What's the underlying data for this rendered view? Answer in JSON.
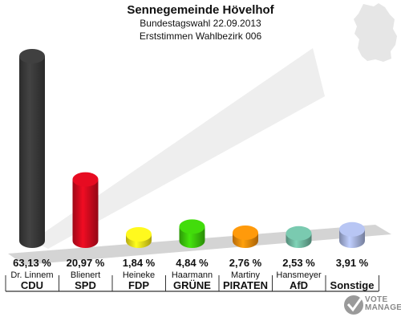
{
  "header": {
    "title": "Sennegemeinde Hövelhof",
    "subtitle": "Bundestagswahl 22.09.2013",
    "subtitle2": "Erststimmen Wahlbezirk 006"
  },
  "chart_data": {
    "type": "bar",
    "title": "Sennegemeinde Hövelhof",
    "categories": [
      "CDU",
      "SPD",
      "FDP",
      "GRÜNE",
      "PIRATEN",
      "AfD",
      "Sonstige"
    ],
    "candidates": [
      "Dr. Linnem",
      "Blienert",
      "Heineke",
      "Haarmann",
      "Martiny",
      "Hansmeyer",
      ""
    ],
    "values": [
      63.13,
      20.97,
      1.84,
      4.84,
      2.76,
      2.53,
      3.91
    ],
    "value_labels": [
      "63,13 %",
      "20,97 %",
      "1,84 %",
      "4,84 %",
      "2,76 %",
      "2,53 %",
      "3,91 %"
    ],
    "colors": [
      "#3a3a3a",
      "#d20a1e",
      "#f2e21b",
      "#3cc80a",
      "#f28c0a",
      "#6fb8a0",
      "#a7b4de"
    ],
    "ylim": [
      0,
      63.13
    ],
    "grid": false,
    "legend": "none"
  },
  "branding": {
    "logo_line1": "VOTE",
    "logo_line2": "MANAGER",
    "logo_icon": "check-mark-icon"
  }
}
